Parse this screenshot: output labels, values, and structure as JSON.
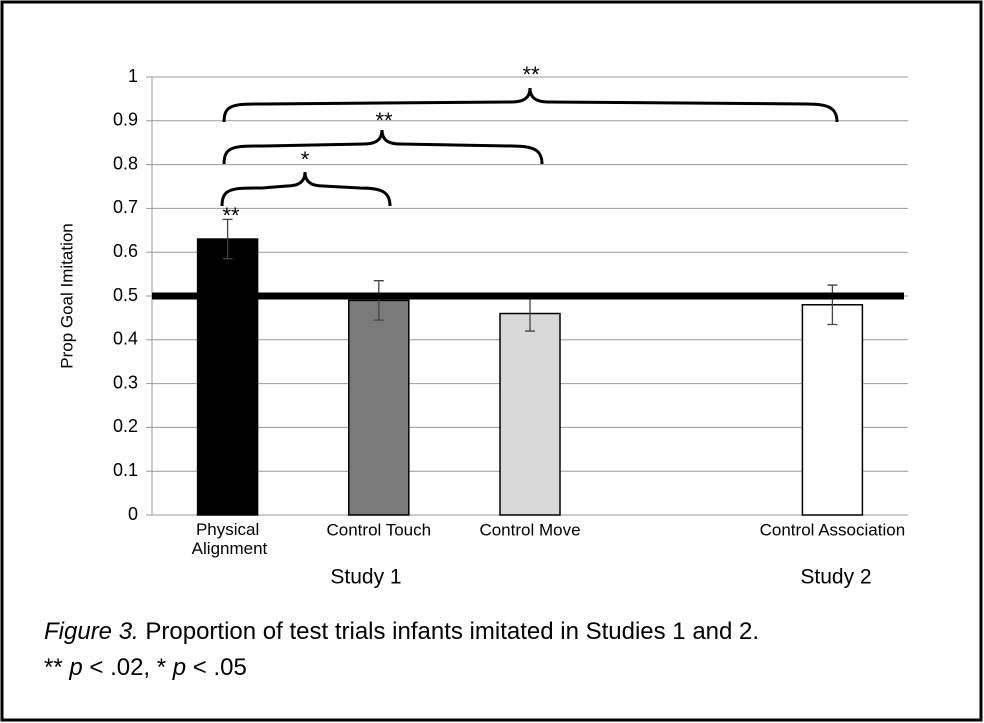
{
  "chart_data": {
    "type": "bar",
    "y_label": "Prop Goal Imitation",
    "categories": [
      "Physical Alignment",
      "Control Touch",
      "Control Move",
      null,
      "Control Association"
    ],
    "series": [
      {
        "values": [
          0.63,
          0.49,
          0.46,
          null,
          0.48
        ],
        "errors": [
          0.045,
          0.045,
          0.04,
          null,
          0.045
        ],
        "colors": [
          "#000000",
          "#7a7a7a",
          "#d9d9d9",
          null,
          "#ffffff"
        ]
      }
    ],
    "ylim": [
      0,
      1
    ],
    "yticks": [
      0,
      0.1,
      0.2,
      0.3,
      0.4,
      0.5,
      0.6,
      0.7,
      0.8,
      0.9,
      1
    ],
    "grid": true,
    "reference_line": 0.5,
    "groups": [
      "Study 1",
      "Study 2"
    ],
    "annotations": [
      "**",
      "*",
      "**",
      "**"
    ]
  },
  "caption": {
    "label": "Figure 3.",
    "text": " Proportion of test trials infants imitated in Studies 1 and 2.",
    "note": [
      "** ",
      "p",
      " < .02, * ",
      "p",
      " < .05"
    ]
  }
}
